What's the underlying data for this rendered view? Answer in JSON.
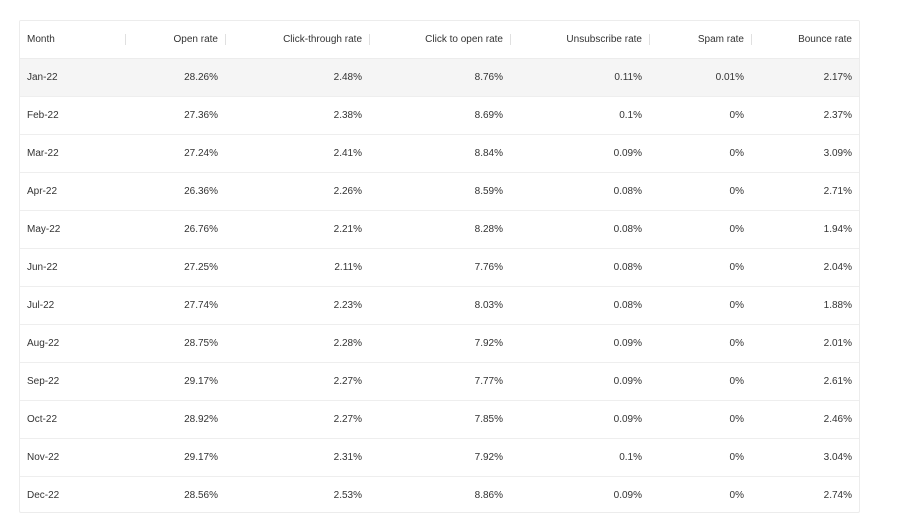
{
  "chart_data": {
    "type": "table",
    "columns": [
      "Month",
      "Open rate",
      "Click-through rate",
      "Click to open rate",
      "Unsubscribe rate",
      "Spam rate",
      "Bounce rate"
    ],
    "rows": [
      [
        "Jan-22",
        "28.26%",
        "2.48%",
        "8.76%",
        "0.11%",
        "0.01%",
        "2.17%"
      ],
      [
        "Feb-22",
        "27.36%",
        "2.38%",
        "8.69%",
        "0.1%",
        "0%",
        "2.37%"
      ],
      [
        "Mar-22",
        "27.24%",
        "2.41%",
        "8.84%",
        "0.09%",
        "0%",
        "3.09%"
      ],
      [
        "Apr-22",
        "26.36%",
        "2.26%",
        "8.59%",
        "0.08%",
        "0%",
        "2.71%"
      ],
      [
        "May-22",
        "26.76%",
        "2.21%",
        "8.28%",
        "0.08%",
        "0%",
        "1.94%"
      ],
      [
        "Jun-22",
        "27.25%",
        "2.11%",
        "7.76%",
        "0.08%",
        "0%",
        "2.04%"
      ],
      [
        "Jul-22",
        "27.74%",
        "2.23%",
        "8.03%",
        "0.08%",
        "0%",
        "1.88%"
      ],
      [
        "Aug-22",
        "28.75%",
        "2.28%",
        "7.92%",
        "0.09%",
        "0%",
        "2.01%"
      ],
      [
        "Sep-22",
        "29.17%",
        "2.27%",
        "7.77%",
        "0.09%",
        "0%",
        "2.61%"
      ],
      [
        "Oct-22",
        "28.92%",
        "2.27%",
        "7.85%",
        "0.09%",
        "0%",
        "2.46%"
      ],
      [
        "Nov-22",
        "29.17%",
        "2.31%",
        "7.92%",
        "0.1%",
        "0%",
        "3.04%"
      ],
      [
        "Dec-22",
        "28.56%",
        "2.53%",
        "8.86%",
        "0.09%",
        "0%",
        "2.74%"
      ]
    ]
  },
  "colors": {
    "highlighted_row_bg": "#f5f5f5",
    "border": "#ececec",
    "text": "#333333"
  }
}
